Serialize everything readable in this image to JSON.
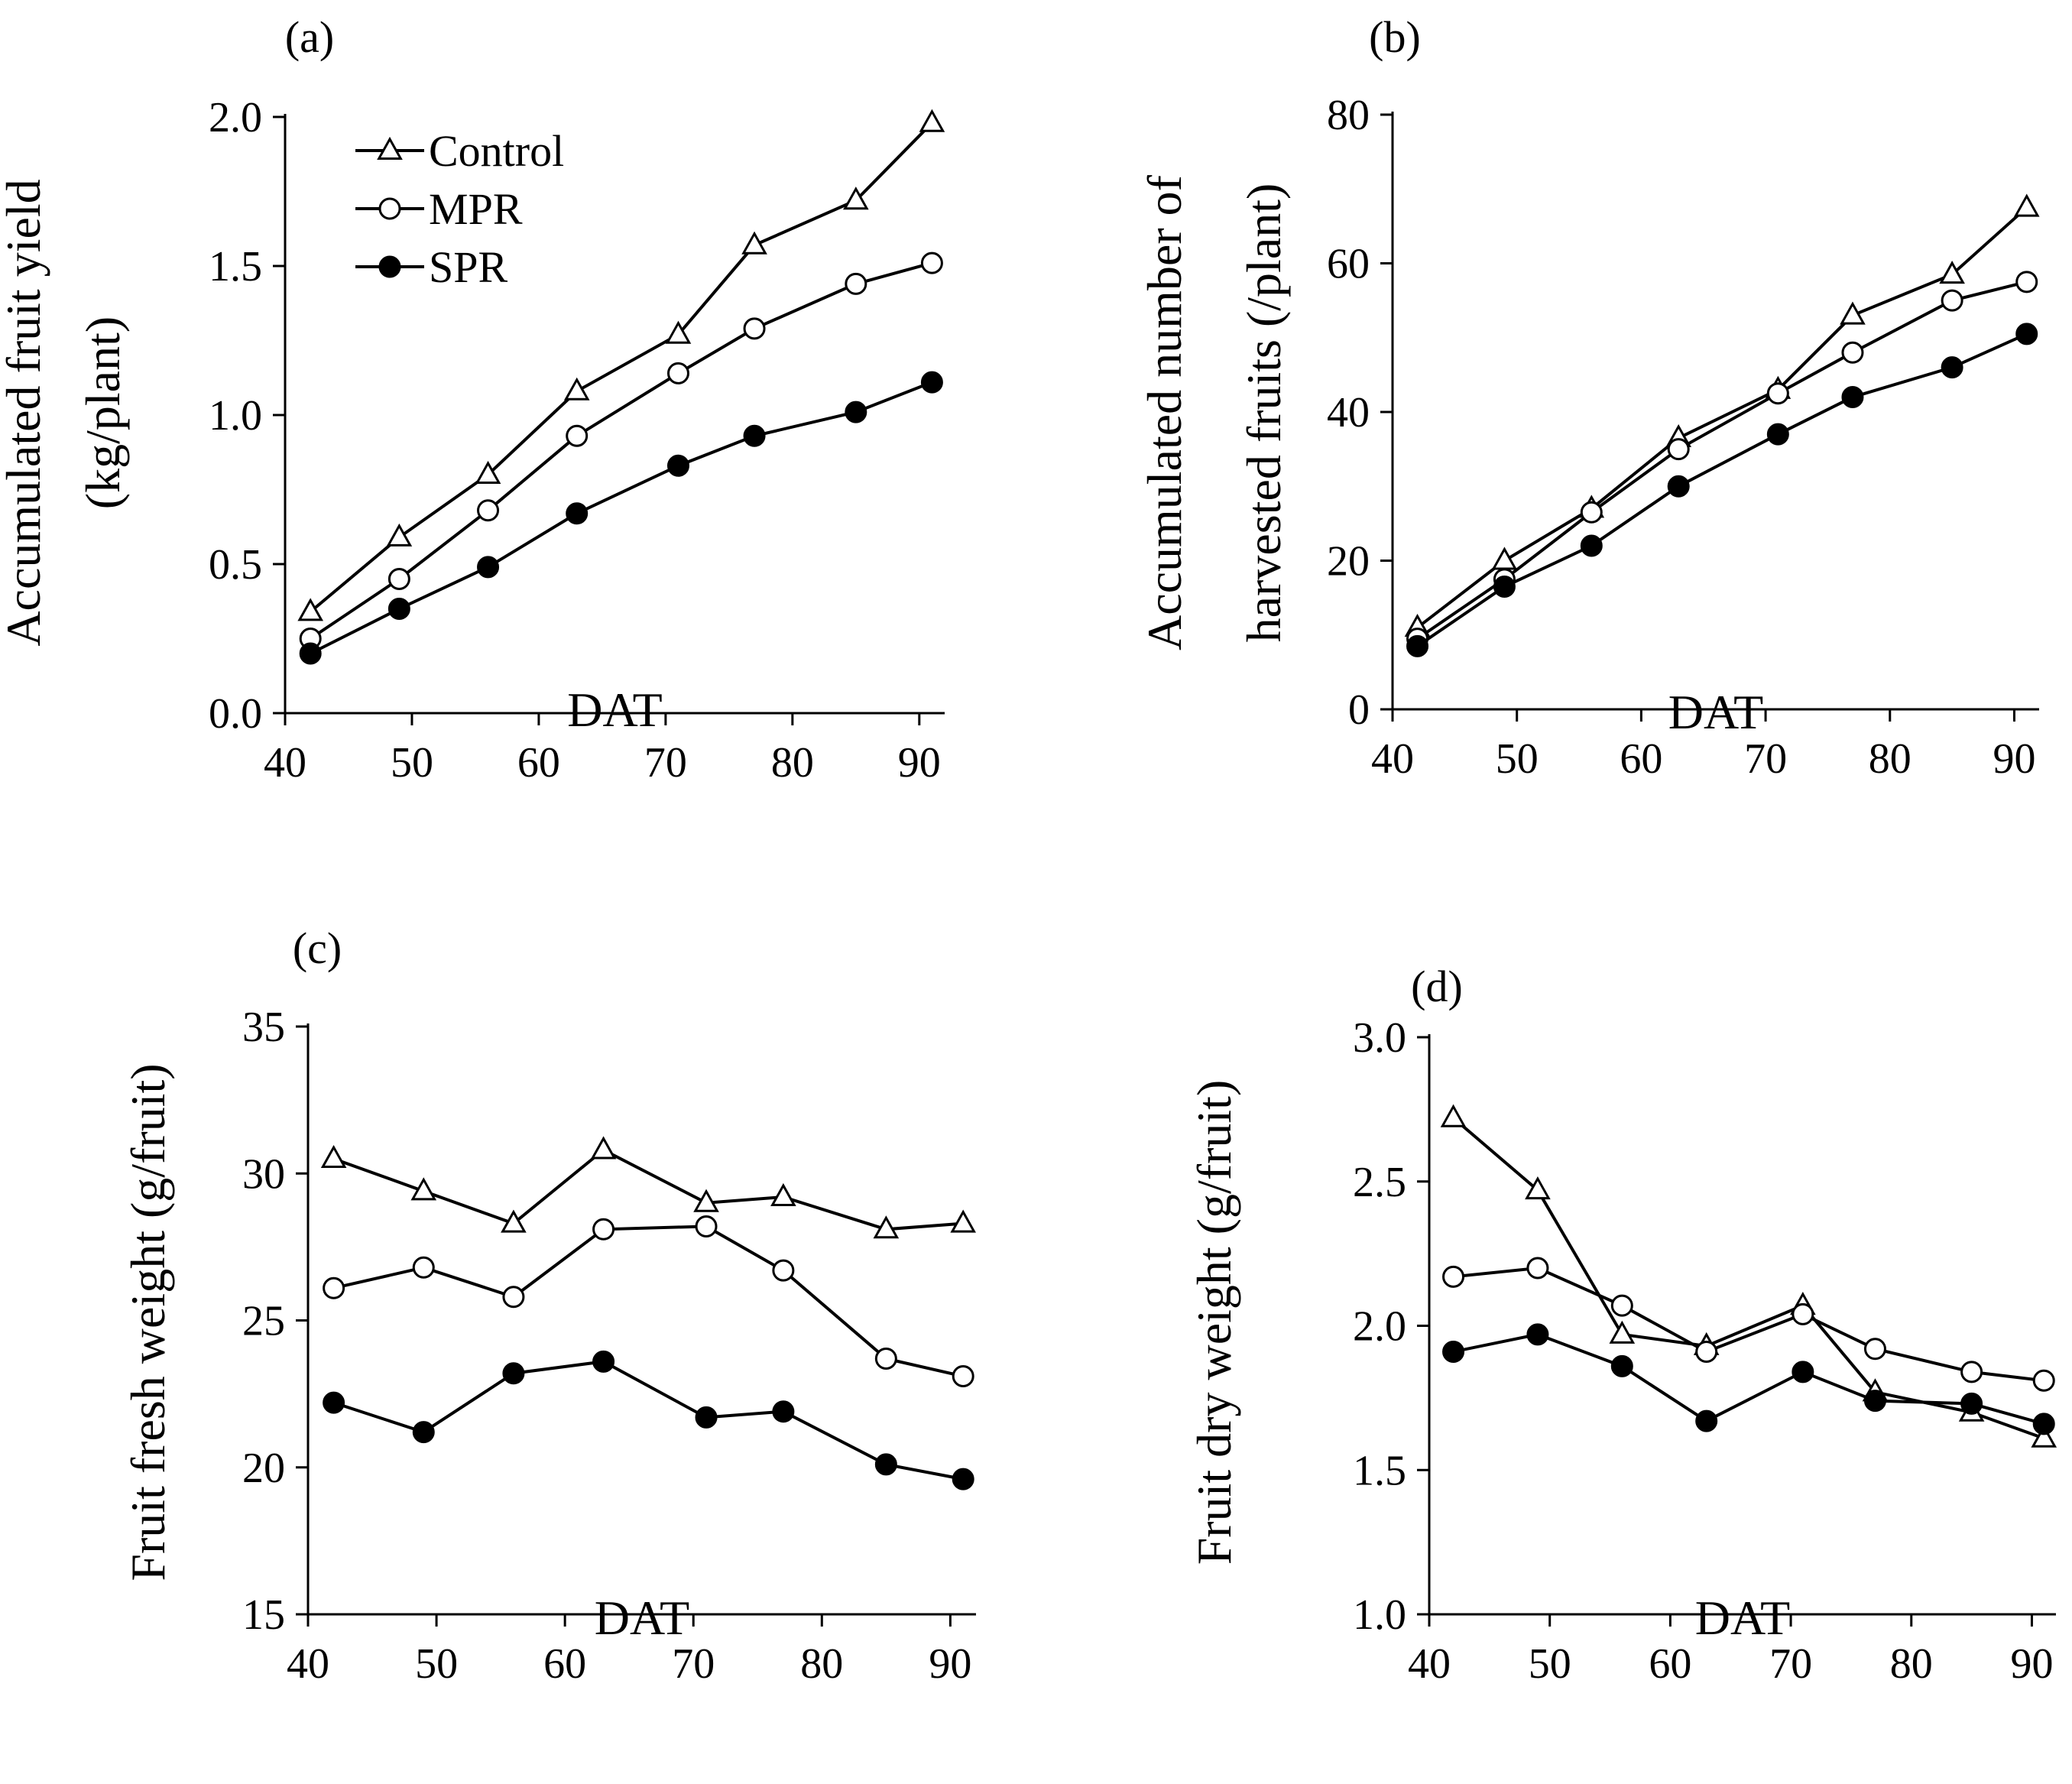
{
  "chart_data": [
    {
      "panel_label": "(a)",
      "type": "line",
      "xlabel": "DAT",
      "ylabel": [
        "Accumulated fruit yield",
        "(kg/plant)"
      ],
      "xlim": [
        40,
        92
      ],
      "ylim": [
        0.0,
        2.0
      ],
      "xticks": [
        "40",
        "50",
        "60",
        "70",
        "80",
        "90"
      ],
      "yticks": [
        "0.0",
        "0.5",
        "1.0",
        "1.5",
        "2.0"
      ],
      "legend": [
        "Control",
        "MPR",
        "SPR"
      ],
      "x": [
        42,
        49,
        56,
        63,
        71,
        77,
        85,
        91
      ],
      "series": [
        {
          "name": "Control",
          "values": [
            0.34,
            0.59,
            0.8,
            1.08,
            1.27,
            1.57,
            1.72,
            1.98
          ]
        },
        {
          "name": "MPR",
          "values": [
            0.25,
            0.45,
            0.68,
            0.93,
            1.14,
            1.29,
            1.44,
            1.51
          ]
        },
        {
          "name": "SPR",
          "values": [
            0.2,
            0.35,
            0.49,
            0.67,
            0.83,
            0.93,
            1.01,
            1.11
          ]
        }
      ]
    },
    {
      "panel_label": "(b)",
      "type": "line",
      "xlabel": "DAT",
      "ylabel": [
        "Accumulated number of",
        "harvested fruits (/plant)"
      ],
      "xlim": [
        40,
        92
      ],
      "ylim": [
        0,
        80
      ],
      "xticks": [
        "40",
        "50",
        "60",
        "70",
        "80",
        "90"
      ],
      "yticks": [
        "0",
        "20",
        "40",
        "60",
        "80"
      ],
      "x": [
        42,
        49,
        56,
        63,
        71,
        77,
        85,
        91
      ],
      "series": [
        {
          "name": "Control",
          "values": [
            11,
            20,
            27,
            36.5,
            43,
            53,
            58.5,
            67.5
          ]
        },
        {
          "name": "MPR",
          "values": [
            9.5,
            17.5,
            26.5,
            35,
            42.5,
            48,
            55,
            57.5
          ]
        },
        {
          "name": "SPR",
          "values": [
            8.5,
            16.5,
            22,
            30,
            37,
            42,
            46,
            50.5
          ]
        }
      ]
    },
    {
      "panel_label": "(c)",
      "type": "line",
      "xlabel": "DAT",
      "ylabel": [
        "Fruit fresh weight (g/fruit)"
      ],
      "xlim": [
        40,
        92
      ],
      "ylim": [
        15,
        35
      ],
      "xticks": [
        "40",
        "50",
        "60",
        "70",
        "80",
        "90"
      ],
      "yticks": [
        "15",
        "20",
        "25",
        "30",
        "35"
      ],
      "x": [
        42,
        49,
        56,
        63,
        71,
        77,
        85,
        91
      ],
      "series": [
        {
          "name": "Control",
          "values": [
            30.5,
            29.4,
            28.3,
            30.8,
            29.0,
            29.2,
            28.1,
            28.3
          ]
        },
        {
          "name": "MPR",
          "values": [
            26.1,
            26.8,
            25.8,
            28.1,
            28.2,
            26.7,
            23.7,
            23.1
          ]
        },
        {
          "name": "SPR",
          "values": [
            22.2,
            21.2,
            23.2,
            23.6,
            21.7,
            21.9,
            20.1,
            19.6
          ]
        }
      ]
    },
    {
      "panel_label": "(d)",
      "type": "line",
      "xlabel": "DAT",
      "ylabel": [
        "Fruit dry weight (g/fruit)"
      ],
      "xlim": [
        40,
        92
      ],
      "ylim": [
        1.0,
        3.0
      ],
      "xticks": [
        "40",
        "50",
        "60",
        "70",
        "80",
        "90"
      ],
      "yticks": [
        "1.0",
        "1.5",
        "2.0",
        "2.5",
        "3.0"
      ],
      "x": [
        42,
        49,
        56,
        63,
        71,
        77,
        85,
        91
      ],
      "series": [
        {
          "name": "Control",
          "values": [
            2.72,
            2.47,
            1.97,
            1.93,
            2.07,
            1.77,
            1.7,
            1.61
          ]
        },
        {
          "name": "MPR",
          "values": [
            2.17,
            2.2,
            2.07,
            1.91,
            2.04,
            1.92,
            1.84,
            1.81
          ]
        },
        {
          "name": "SPR",
          "values": [
            1.91,
            1.97,
            1.86,
            1.67,
            1.84,
            1.74,
            1.73,
            1.66
          ]
        }
      ]
    }
  ]
}
